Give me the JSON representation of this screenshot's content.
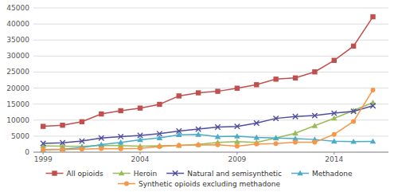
{
  "chart_data": {
    "type": "line",
    "x": [
      1999,
      2000,
      2001,
      2002,
      2003,
      2004,
      2005,
      2006,
      2007,
      2008,
      2009,
      2010,
      2011,
      2012,
      2013,
      2014,
      2015,
      2016
    ],
    "xlim": [
      1998.5,
      2016.8
    ],
    "xticks": [
      1999,
      2004,
      2009,
      2014
    ],
    "ylim": [
      0,
      45000
    ],
    "yticks": [
      0,
      5000,
      10000,
      15000,
      20000,
      25000,
      30000,
      35000,
      40000,
      45000
    ],
    "grid": true,
    "legend": "bottom",
    "series": [
      {
        "name": "All opioids",
        "color": "#C0504D",
        "marker": "square",
        "values": [
          8050,
          8407,
          9496,
          11920,
          12936,
          13756,
          14918,
          17545,
          18515,
          18990,
          19954,
          21048,
          22784,
          23166,
          25052,
          28647,
          33091,
          42249
        ]
      },
      {
        "name": "Heroin",
        "color": "#9BBB59",
        "marker": "triangle",
        "values": [
          1960,
          1842,
          1779,
          2089,
          2080,
          1878,
          2009,
          2088,
          2399,
          3041,
          3278,
          3036,
          4397,
          5925,
          8257,
          10574,
          12989,
          15469
        ]
      },
      {
        "name": "Natural and semisynthetic",
        "color": "#4F4F9E",
        "marker": "x",
        "values": [
          2749,
          2939,
          3454,
          4418,
          4866,
          5231,
          5762,
          6577,
          7183,
          7831,
          8048,
          9076,
          10537,
          11140,
          11409,
          12154,
          12727,
          14487
        ]
      },
      {
        "name": "Methadone",
        "color": "#4BACC6",
        "marker": "triangle",
        "values": [
          786,
          961,
          1456,
          2360,
          3048,
          3849,
          4462,
          5420,
          5518,
          4837,
          4991,
          4577,
          4418,
          4234,
          3947,
          3400,
          3301,
          3373
        ]
      },
      {
        "name": "Synthetic opioids excluding methadone",
        "color": "#F79646",
        "marker": "circle",
        "values": [
          730,
          782,
          957,
          1097,
          1048,
          1160,
          1742,
          2088,
          2213,
          2318,
          1871,
          2519,
          2666,
          3105,
          3105,
          5544,
          9580,
          19413
        ]
      }
    ]
  }
}
